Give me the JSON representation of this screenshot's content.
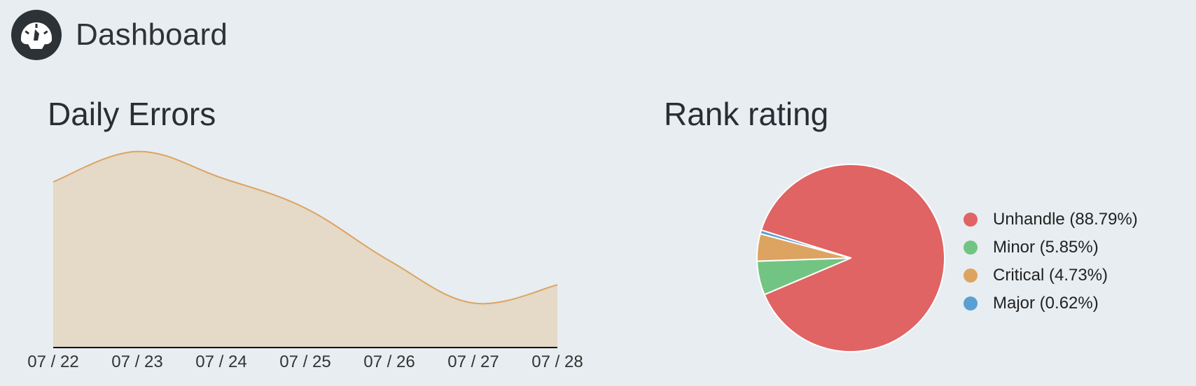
{
  "header": {
    "title": "Dashboard",
    "logo_icon": "speedometer-icon"
  },
  "charts": {
    "daily_errors_title": "Daily Errors",
    "rank_rating_title": "Rank rating"
  },
  "chart_data": [
    {
      "type": "area",
      "title": "Daily Errors",
      "x": [
        "07 / 22",
        "07 / 23",
        "07 / 24",
        "07 / 25",
        "07 / 26",
        "07 / 27",
        "07 / 28"
      ],
      "values": [
        82,
        97,
        84,
        69,
        43,
        22,
        31
      ],
      "ylim": [
        0,
        100
      ],
      "color": "#dca460",
      "fill": "#e5d9c7",
      "grid": false
    },
    {
      "type": "pie",
      "title": "Rank rating",
      "legend_position": "right",
      "slices": [
        {
          "label": "Unhandle (88.79%)",
          "value": 88.79,
          "color": "#df6463"
        },
        {
          "label": "Minor (5.85%)",
          "value": 5.85,
          "color": "#72c482"
        },
        {
          "label": "Critical (4.73%)",
          "value": 4.73,
          "color": "#dca460"
        },
        {
          "label": "Major (0.62%)",
          "value": 0.62,
          "color": "#5a9fd4"
        }
      ]
    }
  ]
}
